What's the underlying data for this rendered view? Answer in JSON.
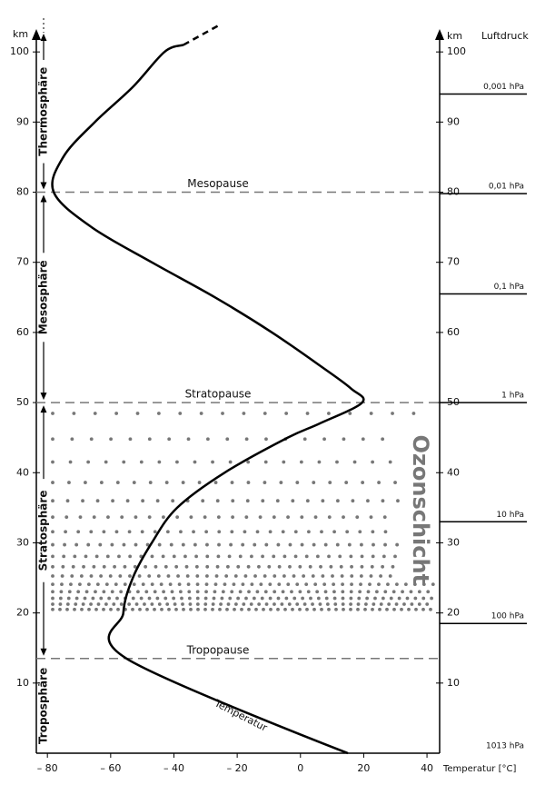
{
  "chart_data": {
    "type": "line",
    "x_label": "Temperatur [°C]",
    "y_label": "km",
    "y2_label": "km",
    "pressure_label": "Luftdruck",
    "xlim": [
      -83.5,
      44
    ],
    "xticks": [
      {
        "value": -80,
        "label": "– 80"
      },
      {
        "value": -60,
        "label": "– 60"
      },
      {
        "value": -40,
        "label": "– 40"
      },
      {
        "value": -20,
        "label": "– 20"
      },
      0,
      20,
      40
    ],
    "ylim": [
      0,
      103
    ],
    "yticks": [
      10,
      20,
      30,
      40,
      50,
      60,
      70,
      80,
      90,
      100
    ],
    "series": [
      {
        "name": "Temperatur",
        "color": "#000000",
        "x": [
          15,
          -55,
          -56,
          -53,
          -47,
          -39,
          -24,
          -4,
          6,
          19.5,
          16,
          7,
          -9,
          -27,
          -47,
          -66,
          -78,
          -75,
          -65,
          -53,
          -43,
          -37
        ],
        "values": [
          0,
          13.5,
          20,
          25,
          30,
          35,
          40,
          45,
          47,
          50,
          52,
          55,
          60,
          65,
          70,
          75,
          80,
          85,
          90,
          95,
          100,
          101
        ]
      },
      {
        "color": "#000000",
        "dashed": true,
        "x": [
          -37,
          -25
        ],
        "values": [
          101,
          104
        ]
      }
    ],
    "boundaries": [
      {
        "label": "Tropopause",
        "value": 13.5
      },
      {
        "label": "Stratopause",
        "value": 50
      },
      {
        "label": "Mesopause",
        "value": 80
      }
    ],
    "layers": [
      {
        "label": "Troposphäre",
        "range": [
          0,
          13.5
        ]
      },
      {
        "label": "Stratosphäre",
        "range": [
          13.5,
          50
        ]
      },
      {
        "label": "Mesosphäre",
        "range": [
          50,
          80
        ]
      },
      {
        "label": "Thermosphäre",
        "range": [
          80,
          103
        ]
      }
    ],
    "pressure_levels": [
      {
        "label": "0,001 hPa",
        "value": 94
      },
      {
        "label": "0,01 hPa",
        "value": 79.8
      },
      {
        "label": "0,1 hPa",
        "value": 65.5
      },
      {
        "label": "1 hPa",
        "value": 50
      },
      {
        "label": "10 hPa",
        "value": 33
      },
      {
        "label": "100 hPa",
        "value": 18.5
      },
      {
        "label": "1013 hPa",
        "value": 0
      }
    ],
    "ozone": {
      "label": "Ozonschicht",
      "range": [
        20.5,
        49
      ],
      "color": "#777777"
    }
  }
}
